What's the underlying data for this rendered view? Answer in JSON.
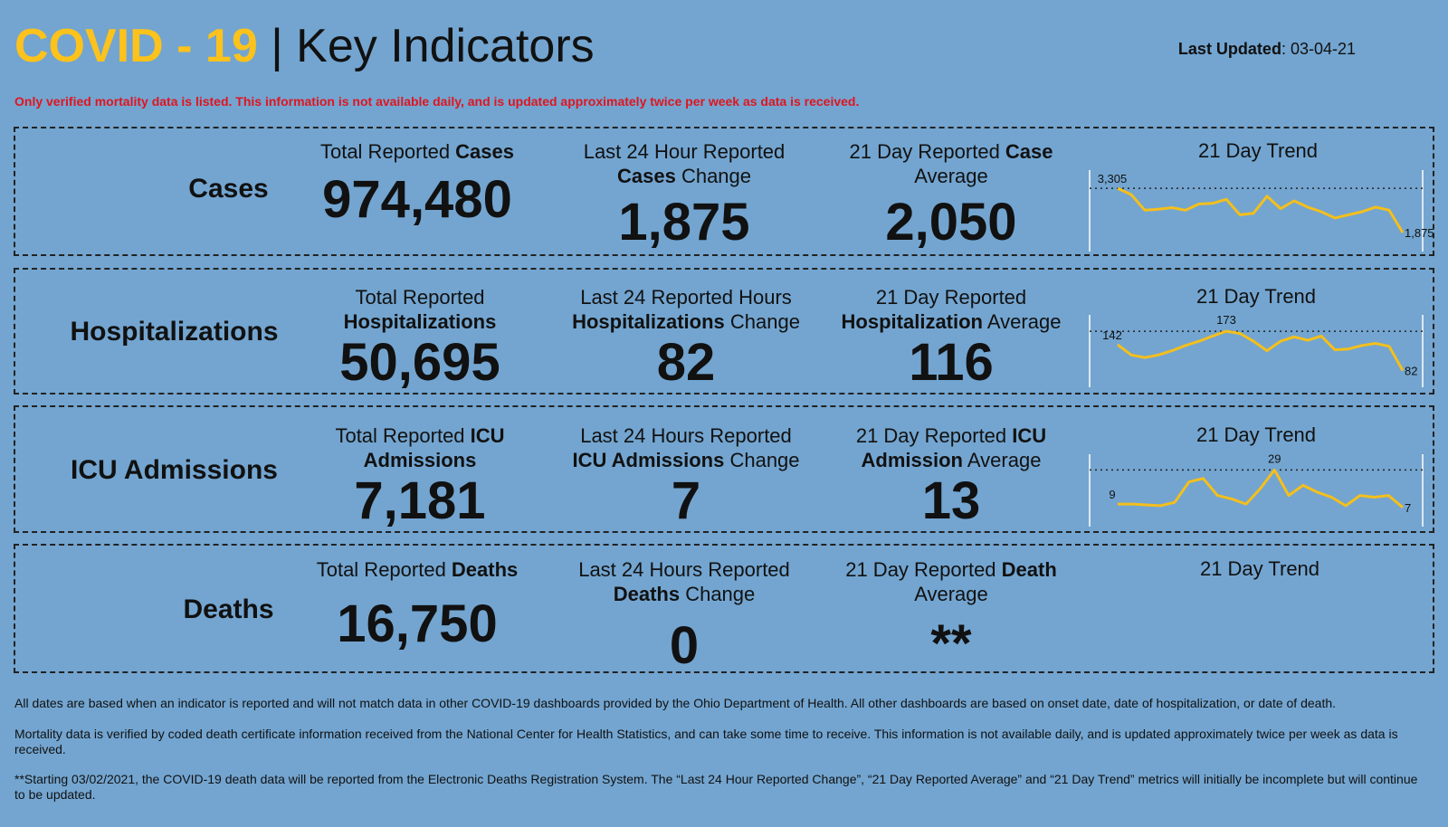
{
  "header": {
    "title_covid": "COVID - 19",
    "title_sep": "|",
    "title_kind": "Key Indicators",
    "updated_label": "Last Updated",
    "updated_value": ": 03-04-21"
  },
  "notice": "Only verified mortality data is listed. This information is not available daily, and is updated approximately twice per week as data is received.",
  "rows": [
    {
      "label": "Cases",
      "total_head_a": "Total Reported ",
      "total_head_b": "Cases",
      "total_head_c": "",
      "total_value": "974,480",
      "change_head_a": "Last 24 Hour Reported",
      "change_head_b": "Cases",
      "change_head_c": " Change",
      "change_value": "1,875",
      "avg_head_a": "21 Day Reported ",
      "avg_head_b": "Case",
      "avg_head_c": "Average",
      "avg_value": "2,050",
      "trend_title": "21 Day Trend",
      "trend_start_label": "3,305",
      "trend_end_label": "1,875"
    },
    {
      "label": "Hospitalizations",
      "total_head_a": "Total Reported",
      "total_head_b": "Hospitalizations",
      "total_value": "50,695",
      "change_head_a": "Last 24 Reported Hours",
      "change_head_b": "Hospitalizations",
      "change_head_c": " Change",
      "change_value": "82",
      "avg_head_a": "21 Day Reported",
      "avg_head_b": "Hospitalization",
      "avg_head_c": " Average",
      "avg_value": "116",
      "trend_title": "21 Day Trend",
      "trend_start_label": "142",
      "trend_peak_label": "173",
      "trend_end_label": "82"
    },
    {
      "label": "ICU Admissions",
      "total_head_a": "Total Reported ",
      "total_head_b": "ICU",
      "total_head_c": "Admissions",
      "total_value": "7,181",
      "change_head_a": "Last 24 Hours Reported",
      "change_head_b": "ICU Admissions",
      "change_head_c": " Change",
      "change_value": "7",
      "avg_head_a": "21 Day Reported ",
      "avg_head_b": "ICU",
      "avg_head_c": "Admission",
      "avg_head_d": " Average",
      "avg_value": "13",
      "trend_title": "21 Day Trend",
      "trend_start_label": "9",
      "trend_peak_label": "29",
      "trend_end_label": "7"
    },
    {
      "label": "Deaths",
      "total_head_a": "Total Reported ",
      "total_head_b": "Deaths",
      "total_value": "16,750",
      "change_head_a": "Last 24 Hours Reported",
      "change_head_b": "Deaths",
      "change_head_c": " Change",
      "change_value": "0",
      "avg_head_a": "21 Day Reported ",
      "avg_head_b": "Death",
      "avg_head_c": "Average",
      "avg_value": "**",
      "trend_title": "21 Day Trend"
    }
  ],
  "footnotes": [
    "All dates are based when an indicator is reported and will not match data in other COVID-19 dashboards provided by the Ohio Department of Health. All other dashboards are based on onset date, date of hospitalization, or date of death.",
    "Mortality data is verified by coded death certificate information received from the National Center for Health Statistics, and can take some time to receive. This information is not available daily, and is updated approximately twice per week as data is received.",
    "**Starting 03/02/2021, the COVID-19 death data will be reported from the Electronic Deaths Registration System. The “Last 24 Hour Reported Change”, “21 Day Reported Average” and “21 Day Trend” metrics will initially be incomplete but will continue to be updated."
  ],
  "colors": {
    "background": "#73a5d0",
    "accent": "#fdc21b",
    "notice": "#e0151f",
    "trend_line": "#f5bf1b"
  },
  "chart_data": [
    {
      "type": "line",
      "series": [
        {
          "values": [
            3305,
            3100,
            2600,
            2630,
            2680,
            2600,
            2800,
            2820,
            2950,
            2450,
            2500,
            3050,
            2650,
            2900,
            2700,
            2550,
            2350,
            2450,
            2550,
            2700,
            2600,
            1875
          ]
        }
      ],
      "ylim": [
        1500,
        3600
      ]
    },
    {
      "type": "line",
      "series": [
        {
          "values": [
            142,
            118,
            112,
            118,
            128,
            140,
            150,
            162,
            173,
            168,
            150,
            128,
            150,
            160,
            152,
            162,
            130,
            132,
            140,
            145,
            138,
            82
          ]
        }
      ],
      "ylim": [
        60,
        190
      ]
    },
    {
      "type": "line",
      "series": [
        {
          "values": [
            9,
            9,
            8.5,
            8,
            10,
            22,
            24,
            14,
            12,
            9,
            18,
            29,
            14,
            20,
            16,
            13,
            8,
            14,
            13,
            14,
            7
          ]
        }
      ],
      "ylim": [
        0,
        34
      ]
    }
  ]
}
